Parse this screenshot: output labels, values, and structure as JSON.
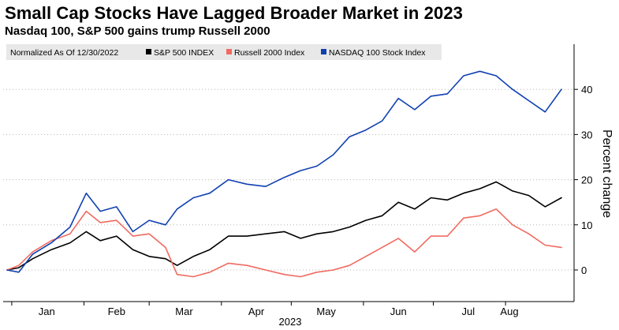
{
  "title": "Small Cap Stocks Have Lagged Broader Market in 2023",
  "subtitle": "Nasdaq 100, S&P 500 gains trump Russell 2000",
  "legend": {
    "note": "Normalized As Of 12/30/2022",
    "items": [
      {
        "label": "S&P 500 INDEX",
        "color": "#000000"
      },
      {
        "label": "Russell 2000 Index",
        "color": "#f06a60"
      },
      {
        "label": "NASDAQ 100 Stock Index",
        "color": "#1040b0"
      }
    ]
  },
  "chart_data": {
    "type": "line",
    "title": "Small Cap Stocks Have Lagged Broader Market in 2023",
    "subtitle": "Nasdaq 100, S&P 500 gains trump Russell 2000",
    "xlabel": "2023",
    "ylabel": "Percent change",
    "x_start": "2022-12-30",
    "x_end": "2023-08-25",
    "month_ticks": [
      "Jan",
      "Feb",
      "Mar",
      "Apr",
      "May",
      "Jun",
      "Jul",
      "Aug"
    ],
    "year_label": "2023",
    "y_ticks": [
      0,
      10,
      20,
      30,
      40
    ],
    "ylim": [
      -7,
      50
    ],
    "y_axis_side": "right",
    "grid": "horizontal dotted",
    "legend_position": "top-left",
    "series": [
      {
        "name": "S&P 500 INDEX",
        "color": "#000000",
        "points": [
          [
            "2022-12-30",
            0
          ],
          [
            "2023-01-04",
            0.5
          ],
          [
            "2023-01-10",
            2.5
          ],
          [
            "2023-01-18",
            4.5
          ],
          [
            "2023-01-26",
            6
          ],
          [
            "2023-02-02",
            8.5
          ],
          [
            "2023-02-08",
            6.5
          ],
          [
            "2023-02-15",
            7.5
          ],
          [
            "2023-02-22",
            4.5
          ],
          [
            "2023-03-01",
            3
          ],
          [
            "2023-03-08",
            2.5
          ],
          [
            "2023-03-13",
            1
          ],
          [
            "2023-03-20",
            3
          ],
          [
            "2023-03-27",
            4.5
          ],
          [
            "2023-04-04",
            7.5
          ],
          [
            "2023-04-12",
            7.5
          ],
          [
            "2023-04-20",
            8
          ],
          [
            "2023-04-28",
            8.5
          ],
          [
            "2023-05-05",
            7
          ],
          [
            "2023-05-12",
            8
          ],
          [
            "2023-05-19",
            8.5
          ],
          [
            "2023-05-26",
            9.5
          ],
          [
            "2023-06-02",
            11
          ],
          [
            "2023-06-09",
            12
          ],
          [
            "2023-06-16",
            15
          ],
          [
            "2023-06-23",
            13.5
          ],
          [
            "2023-06-30",
            16
          ],
          [
            "2023-07-07",
            15.5
          ],
          [
            "2023-07-14",
            17
          ],
          [
            "2023-07-21",
            18
          ],
          [
            "2023-07-28",
            19.5
          ],
          [
            "2023-08-04",
            17.5
          ],
          [
            "2023-08-11",
            16.5
          ],
          [
            "2023-08-18",
            14
          ],
          [
            "2023-08-25",
            16
          ]
        ]
      },
      {
        "name": "Russell 2000 Index",
        "color": "#f06a60",
        "points": [
          [
            "2022-12-30",
            0
          ],
          [
            "2023-01-04",
            1
          ],
          [
            "2023-01-10",
            4
          ],
          [
            "2023-01-18",
            6.5
          ],
          [
            "2023-01-26",
            8
          ],
          [
            "2023-02-02",
            13
          ],
          [
            "2023-02-08",
            10.5
          ],
          [
            "2023-02-15",
            11
          ],
          [
            "2023-02-22",
            7.5
          ],
          [
            "2023-03-01",
            8
          ],
          [
            "2023-03-08",
            5
          ],
          [
            "2023-03-13",
            -1
          ],
          [
            "2023-03-20",
            -1.5
          ],
          [
            "2023-03-27",
            -0.5
          ],
          [
            "2023-04-04",
            1.5
          ],
          [
            "2023-04-12",
            1
          ],
          [
            "2023-04-20",
            0
          ],
          [
            "2023-04-28",
            -1
          ],
          [
            "2023-05-05",
            -1.5
          ],
          [
            "2023-05-12",
            -0.5
          ],
          [
            "2023-05-19",
            0
          ],
          [
            "2023-05-26",
            1
          ],
          [
            "2023-06-02",
            3
          ],
          [
            "2023-06-09",
            5
          ],
          [
            "2023-06-16",
            7
          ],
          [
            "2023-06-23",
            4
          ],
          [
            "2023-06-30",
            7.5
          ],
          [
            "2023-07-07",
            7.5
          ],
          [
            "2023-07-14",
            11.5
          ],
          [
            "2023-07-21",
            12
          ],
          [
            "2023-07-28",
            13.5
          ],
          [
            "2023-08-04",
            10
          ],
          [
            "2023-08-11",
            8
          ],
          [
            "2023-08-18",
            5.5
          ],
          [
            "2023-08-25",
            5
          ]
        ]
      },
      {
        "name": "NASDAQ 100 Stock Index",
        "color": "#1040b0",
        "points": [
          [
            "2022-12-30",
            0
          ],
          [
            "2023-01-04",
            -0.5
          ],
          [
            "2023-01-10",
            3.5
          ],
          [
            "2023-01-18",
            6
          ],
          [
            "2023-01-26",
            9.5
          ],
          [
            "2023-02-02",
            17
          ],
          [
            "2023-02-08",
            13
          ],
          [
            "2023-02-15",
            14
          ],
          [
            "2023-02-22",
            8.5
          ],
          [
            "2023-03-01",
            11
          ],
          [
            "2023-03-08",
            10
          ],
          [
            "2023-03-13",
            13.5
          ],
          [
            "2023-03-20",
            16
          ],
          [
            "2023-03-27",
            17
          ],
          [
            "2023-04-04",
            20
          ],
          [
            "2023-04-12",
            19
          ],
          [
            "2023-04-20",
            18.5
          ],
          [
            "2023-04-28",
            20.5
          ],
          [
            "2023-05-05",
            22
          ],
          [
            "2023-05-12",
            23
          ],
          [
            "2023-05-19",
            25.5
          ],
          [
            "2023-05-26",
            29.5
          ],
          [
            "2023-06-02",
            31
          ],
          [
            "2023-06-09",
            33
          ],
          [
            "2023-06-16",
            38
          ],
          [
            "2023-06-23",
            35.5
          ],
          [
            "2023-06-30",
            38.5
          ],
          [
            "2023-07-07",
            39
          ],
          [
            "2023-07-14",
            43
          ],
          [
            "2023-07-21",
            44
          ],
          [
            "2023-07-28",
            43
          ],
          [
            "2023-08-04",
            40
          ],
          [
            "2023-08-11",
            37.5
          ],
          [
            "2023-08-18",
            35
          ],
          [
            "2023-08-25",
            40
          ]
        ]
      }
    ]
  }
}
